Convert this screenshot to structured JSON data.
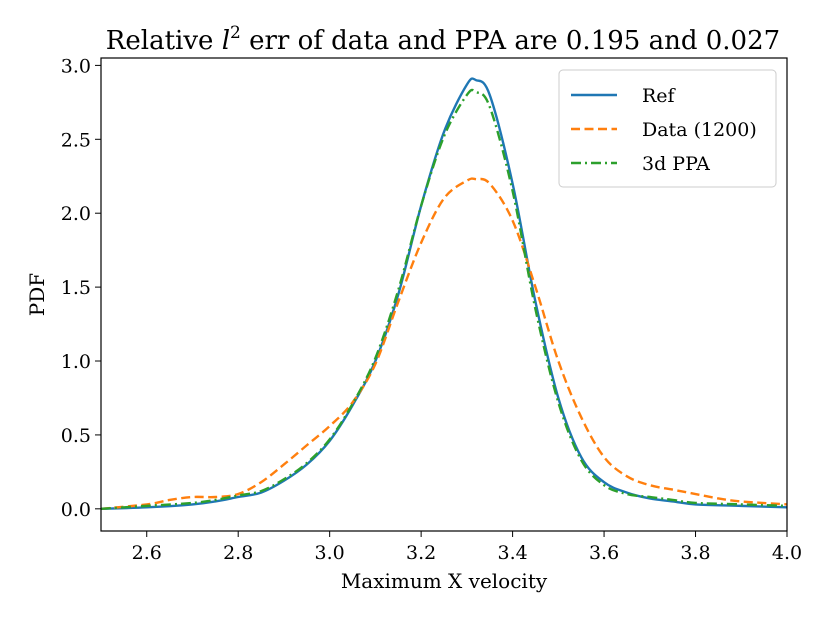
{
  "chart_data": {
    "type": "line",
    "title": {
      "prefix": "Relative ",
      "variable": "l",
      "superscript": "2",
      "suffix": " err of data and PPA are 0.195 and 0.027"
    },
    "xlabel": "Maximum X velocity",
    "ylabel": "PDF",
    "xlim": [
      2.5,
      4.0
    ],
    "ylim": [
      -0.15,
      3.05
    ],
    "xticks": [
      2.6,
      2.8,
      3.0,
      3.2,
      3.4,
      3.6,
      3.8,
      4.0
    ],
    "xtick_labels": [
      "2.6",
      "2.8",
      "3.0",
      "3.2",
      "3.4",
      "3.6",
      "3.8",
      "4.0"
    ],
    "yticks": [
      0.0,
      0.5,
      1.0,
      1.5,
      2.0,
      2.5,
      3.0
    ],
    "ytick_labels": [
      "0.0",
      "0.5",
      "1.0",
      "1.5",
      "2.0",
      "2.5",
      "3.0"
    ],
    "legend_position": "top-right",
    "series": [
      {
        "name": "Ref",
        "color": "#1f77b4",
        "style": "solid",
        "x": [
          2.5,
          2.6,
          2.7,
          2.75,
          2.8,
          2.85,
          2.9,
          2.95,
          3.0,
          3.05,
          3.1,
          3.15,
          3.2,
          3.25,
          3.3,
          3.32,
          3.35,
          3.4,
          3.45,
          3.5,
          3.55,
          3.6,
          3.65,
          3.7,
          3.75,
          3.8,
          3.9,
          4.0
        ],
        "y": [
          0.0,
          0.01,
          0.03,
          0.05,
          0.08,
          0.11,
          0.19,
          0.3,
          0.46,
          0.7,
          1.0,
          1.45,
          2.05,
          2.55,
          2.87,
          2.9,
          2.8,
          2.2,
          1.4,
          0.75,
          0.35,
          0.18,
          0.11,
          0.07,
          0.05,
          0.03,
          0.02,
          0.01
        ]
      },
      {
        "name": "Data (1200)",
        "color": "#ff7f0e",
        "style": "dashed",
        "x": [
          2.5,
          2.6,
          2.65,
          2.7,
          2.75,
          2.8,
          2.85,
          2.9,
          2.95,
          3.0,
          3.05,
          3.1,
          3.15,
          3.2,
          3.25,
          3.3,
          3.32,
          3.35,
          3.4,
          3.45,
          3.5,
          3.55,
          3.6,
          3.65,
          3.7,
          3.75,
          3.8,
          3.85,
          3.9,
          4.0
        ],
        "y": [
          0.0,
          0.03,
          0.06,
          0.08,
          0.08,
          0.1,
          0.18,
          0.3,
          0.43,
          0.56,
          0.72,
          0.98,
          1.4,
          1.8,
          2.1,
          2.22,
          2.23,
          2.2,
          1.95,
          1.5,
          1.0,
          0.62,
          0.35,
          0.22,
          0.16,
          0.13,
          0.1,
          0.07,
          0.05,
          0.03
        ]
      },
      {
        "name": "3d PPA",
        "color": "#2ca02c",
        "style": "dashdot",
        "x": [
          2.5,
          2.6,
          2.7,
          2.75,
          2.8,
          2.85,
          2.9,
          2.95,
          3.0,
          3.05,
          3.1,
          3.15,
          3.2,
          3.25,
          3.3,
          3.32,
          3.35,
          3.4,
          3.45,
          3.5,
          3.55,
          3.6,
          3.65,
          3.7,
          3.75,
          3.8,
          3.9,
          4.0
        ],
        "y": [
          0.0,
          0.02,
          0.04,
          0.06,
          0.09,
          0.12,
          0.2,
          0.31,
          0.47,
          0.71,
          1.02,
          1.48,
          2.05,
          2.52,
          2.8,
          2.82,
          2.72,
          2.15,
          1.35,
          0.72,
          0.33,
          0.16,
          0.1,
          0.08,
          0.06,
          0.04,
          0.03,
          0.02
        ]
      }
    ]
  }
}
